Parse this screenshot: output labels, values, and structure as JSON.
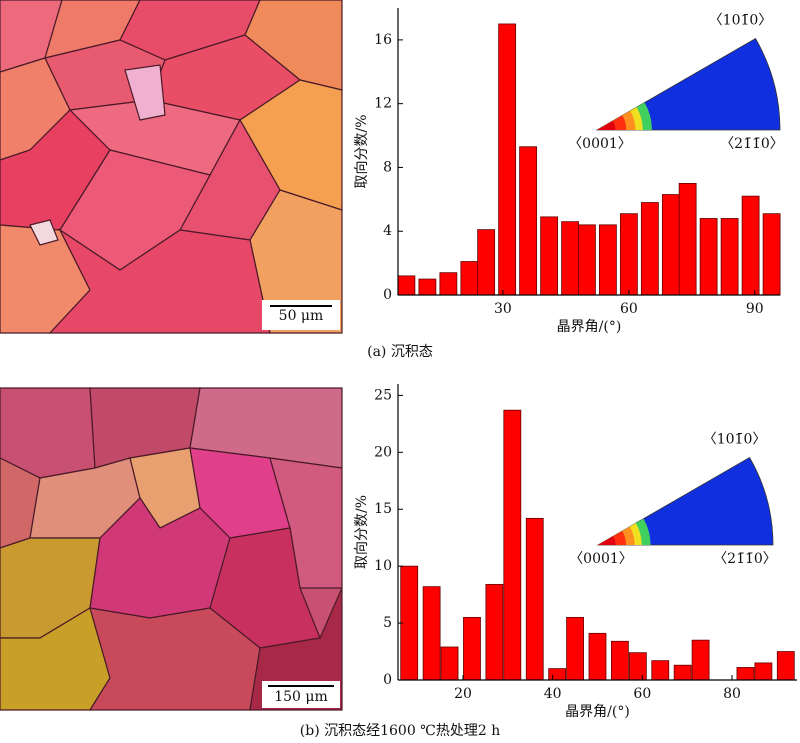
{
  "chart_data": [
    {
      "type": "bar",
      "color": "#ff0000",
      "x": [
        7,
        12,
        17,
        22,
        26,
        31,
        36,
        41,
        46,
        50,
        55,
        60,
        65,
        70,
        74,
        79,
        84,
        89,
        94
      ],
      "values": [
        1.2,
        1.0,
        1.4,
        2.1,
        4.1,
        17.0,
        9.3,
        4.9,
        4.6,
        4.4,
        4.4,
        5.1,
        5.8,
        6.3,
        7.0,
        4.8,
        4.8,
        6.2,
        5.1
      ],
      "xlim": [
        5,
        96
      ],
      "xticks": [
        30,
        60,
        90
      ],
      "ylim": [
        0,
        18
      ],
      "yticks": [
        0,
        4,
        8,
        12,
        16
      ],
      "xlabel": "晶界角/(°)",
      "ylabel": "取向分数/%",
      "annotations": [
        "〈101̄0〉",
        "〈0001〉",
        "〈21̄1̄0〉"
      ],
      "scale_bar": "50 μm",
      "caption": "(a) 沉积态"
    },
    {
      "type": "bar",
      "color": "#ff0000",
      "x": [
        8,
        13,
        17,
        22,
        27,
        31,
        36,
        41,
        45,
        50,
        55,
        59,
        64,
        69,
        73,
        78,
        83,
        87,
        92
      ],
      "values": [
        10.0,
        8.2,
        2.9,
        5.5,
        8.4,
        23.7,
        14.2,
        1.0,
        5.5,
        4.1,
        3.4,
        2.4,
        1.7,
        1.3,
        3.5,
        0,
        1.1,
        1.5,
        2.5
      ],
      "xlim": [
        5.5,
        94.5
      ],
      "xticks": [
        20,
        40,
        60,
        80
      ],
      "ylim": [
        0,
        26
      ],
      "yticks": [
        0,
        5,
        10,
        15,
        20,
        25
      ],
      "xlabel": "晶界角/(°)",
      "ylabel": "取向分数/%",
      "annotations": [
        "〈101̄0〉",
        "〈0001〉",
        "〈21̄1̄0〉"
      ],
      "scale_bar": "150 μm",
      "caption": "(b) 沉积态经1600 ℃热处理2 h"
    }
  ]
}
